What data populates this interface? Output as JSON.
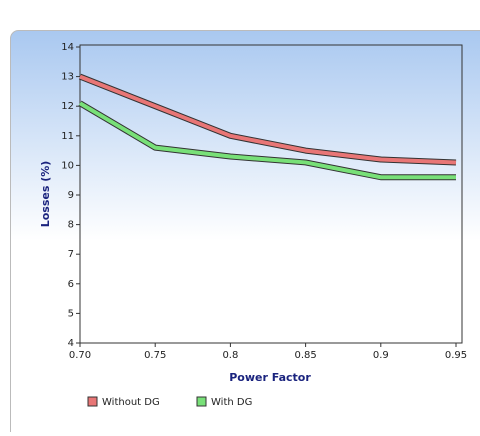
{
  "chart_data": {
    "type": "line",
    "x_label": "Power Factor",
    "y_label": "Losses (%)",
    "x": [
      0.7,
      0.75,
      0.8,
      0.85,
      0.9,
      0.95
    ],
    "series": [
      {
        "name": "Without DG",
        "color": "#e87676",
        "values": [
          13,
          12,
          11,
          10.5,
          10.2,
          10.1
        ]
      },
      {
        "name": "With DG",
        "color": "#78e078",
        "values": [
          12.1,
          10.6,
          10.3,
          10.1,
          9.6,
          9.6
        ]
      }
    ],
    "xlim": [
      0.7,
      0.95
    ],
    "xticks": [
      {
        "value": 0.7,
        "label": "0.70"
      },
      0.75,
      0.8,
      0.85,
      0.9,
      0.95
    ],
    "ylim": [
      4,
      14
    ],
    "yticks": [
      4,
      5,
      6,
      7,
      8,
      9,
      10,
      11,
      12,
      13,
      14
    ]
  }
}
